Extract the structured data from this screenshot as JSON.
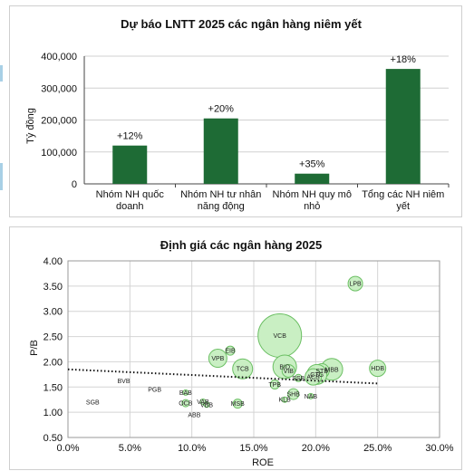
{
  "bar_chart": {
    "type": "bar",
    "title": "Dự báo LNTT 2025 các ngân hàng niêm yết",
    "ylabel": "Tỷ đồng",
    "ylim": [
      0,
      400000
    ],
    "yticks": [
      "0",
      "100,000",
      "200,000",
      "300,000",
      "400,000"
    ],
    "yticks_values": [
      0,
      100000,
      200000,
      300000,
      400000
    ],
    "categories": [
      [
        "Nhóm NH quốc",
        "doanh"
      ],
      [
        "Nhóm NH tư nhân",
        "năng động"
      ],
      [
        "Nhóm NH quy mô",
        "nhỏ"
      ],
      [
        "Tổng các NH niêm",
        "yết"
      ]
    ],
    "values": [
      120000,
      205000,
      32000,
      360000
    ],
    "labels": [
      "+12%",
      "+20%",
      "+35%",
      "+18%"
    ],
    "bar_color": "#1e6b35",
    "grid": true
  },
  "chart_data": {
    "type": "scatter",
    "title": "Định giá các ngân hàng 2025",
    "xlabel": "ROE",
    "ylabel": "P/B",
    "xlim": [
      0,
      0.3
    ],
    "ylim": [
      0.5,
      4.0
    ],
    "xticks": [
      "0.0%",
      "5.0%",
      "10.0%",
      "15.0%",
      "20.0%",
      "25.0%",
      "30.0%"
    ],
    "xticks_values": [
      0,
      0.05,
      0.1,
      0.15,
      0.2,
      0.25,
      0.3
    ],
    "yticks": [
      "0.50",
      "1.00",
      "1.50",
      "2.00",
      "2.50",
      "3.00",
      "3.50",
      "4.00"
    ],
    "yticks_values": [
      0.5,
      1.0,
      1.5,
      2.0,
      2.5,
      3.0,
      3.5,
      4.0
    ],
    "grid": true,
    "bubble_color": "#c9efc3",
    "bubble_stroke": "#6bbf63",
    "points": [
      {
        "name": "LPB",
        "x": 0.232,
        "y": 3.55,
        "r": 8
      },
      {
        "name": "VCB",
        "x": 0.171,
        "y": 2.52,
        "r": 24
      },
      {
        "name": "EIB",
        "x": 0.131,
        "y": 2.22,
        "r": 5
      },
      {
        "name": "VPB",
        "x": 0.121,
        "y": 2.07,
        "r": 10
      },
      {
        "name": "TCB",
        "x": 0.141,
        "y": 1.86,
        "r": 11
      },
      {
        "name": "BID",
        "x": 0.175,
        "y": 1.9,
        "r": 13
      },
      {
        "name": "VIB",
        "x": 0.178,
        "y": 1.82,
        "r": 7
      },
      {
        "name": "MBB",
        "x": 0.213,
        "y": 1.85,
        "r": 12
      },
      {
        "name": "STB",
        "x": 0.205,
        "y": 1.82,
        "r": 8
      },
      {
        "name": "CTG",
        "x": 0.201,
        "y": 1.75,
        "r": 11
      },
      {
        "name": "ACB",
        "x": 0.198,
        "y": 1.7,
        "r": 9
      },
      {
        "name": "HDB",
        "x": 0.25,
        "y": 1.87,
        "r": 9
      },
      {
        "name": "SSB",
        "x": 0.186,
        "y": 1.68,
        "r": 4
      },
      {
        "name": "TPB",
        "x": 0.167,
        "y": 1.55,
        "r": 5
      },
      {
        "name": "SHB",
        "x": 0.182,
        "y": 1.36,
        "r": 6
      },
      {
        "name": "NAB",
        "x": 0.196,
        "y": 1.32,
        "r": 3
      },
      {
        "name": "KLB",
        "x": 0.175,
        "y": 1.25,
        "r": 3
      },
      {
        "name": "MSB",
        "x": 0.137,
        "y": 1.17,
        "r": 5
      },
      {
        "name": "BVB",
        "x": 0.045,
        "y": 1.62,
        "r": 2
      },
      {
        "name": "PGB",
        "x": 0.07,
        "y": 1.45,
        "r": 2
      },
      {
        "name": "SGB",
        "x": 0.02,
        "y": 1.2,
        "r": 2
      },
      {
        "name": "BAB",
        "x": 0.095,
        "y": 1.39,
        "r": 3
      },
      {
        "name": "OCB",
        "x": 0.095,
        "y": 1.18,
        "r": 4
      },
      {
        "name": "VAB",
        "x": 0.109,
        "y": 1.21,
        "r": 3
      },
      {
        "name": "VBB",
        "x": 0.112,
        "y": 1.15,
        "r": 3
      },
      {
        "name": "ABB",
        "x": 0.102,
        "y": 0.95,
        "r": 2
      }
    ],
    "trendline": {
      "x1": 0.0,
      "y1": 1.85,
      "x2": 0.25,
      "y2": 1.57,
      "style": "dotted"
    }
  }
}
